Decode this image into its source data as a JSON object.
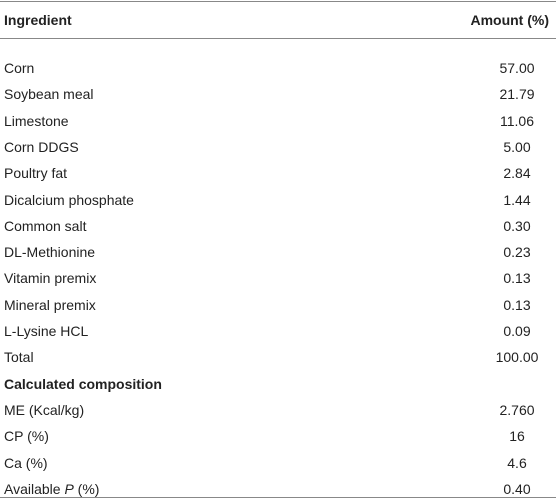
{
  "table": {
    "header": [
      "Ingredient",
      "Amount (%)"
    ],
    "rows": [
      [
        "Corn",
        "57.00"
      ],
      [
        "Soybean meal",
        "21.79"
      ],
      [
        "Limestone",
        "11.06"
      ],
      [
        "Corn DDGS",
        "5.00"
      ],
      [
        "Poultry fat",
        "2.84"
      ],
      [
        "Dicalcium phosphate",
        "1.44"
      ],
      [
        "Common salt",
        "0.30"
      ],
      [
        "DL-Methionine",
        "0.23"
      ],
      [
        "Vitamin premix",
        "0.13"
      ],
      [
        "Mineral premix",
        "0.13"
      ],
      [
        "L-Lysine HCL",
        "0.09"
      ],
      [
        "Total",
        "100.00"
      ]
    ],
    "section_title": "Calculated composition",
    "composition_rows": [
      {
        "label": [
          "ME (Kcal/kg)"
        ],
        "value": "2.760"
      },
      {
        "label": [
          "CP (%)"
        ],
        "value": "16"
      },
      {
        "label": [
          "Ca (%)"
        ],
        "value": "4.6"
      },
      {
        "label": [
          "Available ",
          "P",
          " (%)"
        ],
        "value": "0.40"
      }
    ]
  }
}
